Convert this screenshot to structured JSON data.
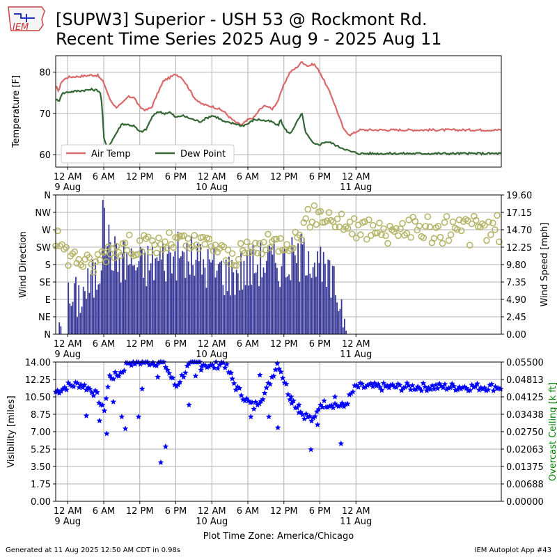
{
  "header": {
    "title_line1": "[SUPW3] Superior - USH 53 @ Rockmont Rd.",
    "title_line2": "Recent Time Series 2025 Aug 9 - 2025 Aug 11",
    "logo_text": "IEM"
  },
  "footer": {
    "generated": "Generated at 11 Aug 2025 12:50 AM CDT in 0.98s",
    "app": "IEM Autoplot App #43"
  },
  "x_axis": {
    "timezone_label": "Plot Time Zone: America/Chicago",
    "range_hours": [
      -2,
      72.2
    ],
    "ticks": [
      {
        "h": 0,
        "l1": "12 AM",
        "l2": "9 Aug"
      },
      {
        "h": 6,
        "l1": "6 AM",
        "l2": ""
      },
      {
        "h": 12,
        "l1": "12 PM",
        "l2": ""
      },
      {
        "h": 18,
        "l1": "6 PM",
        "l2": ""
      },
      {
        "h": 24,
        "l1": "12 AM",
        "l2": "10 Aug"
      },
      {
        "h": 30,
        "l1": "6 AM",
        "l2": ""
      },
      {
        "h": 36,
        "l1": "12 PM",
        "l2": ""
      },
      {
        "h": 42,
        "l1": "6 PM",
        "l2": ""
      },
      {
        "h": 48,
        "l1": "12 AM",
        "l2": "11 Aug"
      }
    ]
  },
  "colors": {
    "air_temp": "#d9686a",
    "dew_point": "#336633",
    "wind_speed": "#383898",
    "wind_dir": "#b5b56a",
    "visibility": "#0000ff",
    "ceiling_axis": "#008000",
    "grid": "#b0b0b0"
  },
  "chart_data": [
    {
      "type": "line",
      "ylabel": "Temperature [F]",
      "ylim": [
        57,
        84
      ],
      "yticks": [
        "60",
        "70",
        "80"
      ],
      "ytick_values": [
        60,
        70,
        80
      ],
      "grid": true,
      "legend_position": "lower-left",
      "series": [
        {
          "name": "Air Temp",
          "x_hours": [
            -2,
            -1.5,
            -1,
            0,
            2,
            4,
            5,
            6,
            7,
            8,
            9,
            10,
            11,
            12,
            13,
            14,
            15,
            16,
            17,
            18,
            19,
            20,
            21,
            22,
            23,
            24,
            25,
            26,
            27,
            28,
            29,
            30,
            31,
            32,
            33,
            34,
            35,
            36,
            37,
            38,
            39,
            40,
            41,
            42,
            43,
            44,
            45,
            46,
            47,
            48,
            48.5
          ],
          "values": [
            76.5,
            75.5,
            77.8,
            78.8,
            79.0,
            79.3,
            79.2,
            77.5,
            73.5,
            71.5,
            72.3,
            74.0,
            74.0,
            71.5,
            70.8,
            71.5,
            75.0,
            78.0,
            78.7,
            79.5,
            78.7,
            76.5,
            74.0,
            72.5,
            72.0,
            71.7,
            71.2,
            70.5,
            69.0,
            67.8,
            67.2,
            68.5,
            69.0,
            71.0,
            72.0,
            71.0,
            73.0,
            77.0,
            80.0,
            81.0,
            82.5,
            81.5,
            82.0,
            80.0,
            77.0,
            74.0,
            70.0,
            66.0,
            64.8,
            65.5,
            66.0
          ]
        },
        {
          "name": "Dew Point",
          "x_hours": [
            -2,
            -1.5,
            -1,
            0,
            2,
            4,
            5,
            5.5,
            5.8,
            6.0,
            6.5,
            7,
            8,
            9,
            10,
            11,
            12,
            13,
            14,
            15,
            16,
            17,
            18,
            19,
            20,
            21,
            22,
            23,
            24,
            25,
            26,
            27,
            28,
            29,
            30,
            31,
            32,
            33,
            34,
            35,
            35.5,
            36,
            37,
            38,
            39,
            39.5,
            40,
            41,
            42,
            43,
            44,
            45,
            46,
            47,
            48,
            48.5
          ],
          "values": [
            73.5,
            72.8,
            74.8,
            75.2,
            75.5,
            75.8,
            75.6,
            75.0,
            70.0,
            64.0,
            62.0,
            62.5,
            65.0,
            67.5,
            67.3,
            67.0,
            65.5,
            66.0,
            69.0,
            70.5,
            70.0,
            70.3,
            69.0,
            69.5,
            69.0,
            68.5,
            68.0,
            68.8,
            69.5,
            69.0,
            68.0,
            67.7,
            67.5,
            67.0,
            67.5,
            68.5,
            68.5,
            68.2,
            68.0,
            67.0,
            68.5,
            66.5,
            65.0,
            67.5,
            70.0,
            66.0,
            64.5,
            62.5,
            62.5,
            63.2,
            62.8,
            62.0,
            61.5,
            60.8,
            60.5,
            60.3
          ]
        }
      ]
    },
    {
      "type": "bar",
      "ylabel": "Wind Direction",
      "ylabel_right": "Wind Speed [mph]",
      "yticks_left": [
        "N",
        "NE",
        "E",
        "SE",
        "S",
        "SW",
        "W",
        "NW",
        "N"
      ],
      "yticks_right": [
        "0.00",
        "2.45",
        "4.90",
        "7.35",
        "9.80",
        "12.25",
        "14.70",
        "17.15",
        "19.60"
      ],
      "ylim_left": [
        0,
        360
      ],
      "ylim_right": [
        0,
        19.6
      ],
      "grid": true,
      "wind_speed_profile": {
        "x_hours": [
          -1.5,
          0,
          2,
          5,
          6,
          8,
          10,
          12,
          15,
          18,
          21,
          24,
          27,
          30,
          33,
          36,
          39,
          40,
          42,
          44,
          45,
          46.3
        ],
        "values": [
          3.5,
          4.5,
          5.5,
          8.5,
          14.5,
          10.5,
          10.5,
          9.5,
          10.5,
          11.0,
          10.5,
          9.5,
          8.5,
          9.5,
          10.5,
          10.0,
          11.0,
          12.0,
          9.0,
          7.0,
          5.5,
          2.5
        ]
      },
      "wind_direction_profile": {
        "x_hours": [
          -2,
          0,
          2,
          4,
          6,
          8,
          10,
          12,
          15,
          18,
          21,
          24,
          27,
          30,
          33,
          36,
          38,
          40,
          42,
          44,
          46,
          48
        ],
        "values_deg": [
          250,
          205,
          195,
          175,
          210,
          225,
          230,
          230,
          230,
          240,
          230,
          235,
          195,
          215,
          230,
          240,
          245,
          300,
          310,
          300,
          285,
          270
        ]
      },
      "wind_speed_max_bar": 18.9
    },
    {
      "type": "scatter",
      "ylabel": "Visibility [miles]",
      "ylabel_right": "Overcast Ceiling [k ft]",
      "yticks_left": [
        "0.00",
        "1.75",
        "3.50",
        "5.25",
        "7.00",
        "8.75",
        "10.50",
        "12.25",
        "14.00"
      ],
      "yticks_right": [
        "0.00000",
        "0.00688",
        "0.01375",
        "0.02063",
        "0.02750",
        "0.03438",
        "0.04125",
        "0.04813",
        "0.05500"
      ],
      "ylim_left": [
        0,
        14
      ],
      "ylim_right": [
        0,
        0.055
      ],
      "grid": true,
      "marker": "star",
      "visibility_profile": {
        "x_hours": [
          -2,
          0,
          2,
          4,
          5,
          6,
          7,
          8,
          9,
          10,
          12,
          14,
          16,
          18,
          20,
          22,
          24,
          26,
          28,
          30,
          31,
          33,
          35,
          37,
          39,
          40,
          41,
          42,
          44,
          46,
          48
        ],
        "values": [
          11.0,
          11.6,
          11.8,
          11.2,
          10.5,
          9.0,
          12.5,
          12.6,
          13.0,
          14.0,
          14.0,
          14.0,
          14.0,
          11.5,
          13.5,
          14.0,
          13.5,
          14.0,
          11.5,
          10.0,
          9.5,
          11.0,
          14.0,
          10.5,
          8.8,
          8.5,
          8.0,
          9.8,
          9.8,
          9.5,
          11.5
        ]
      },
      "visibility_outliers": [
        {
          "x": 3.1,
          "y": 8.6
        },
        {
          "x": 5.3,
          "y": 8.1
        },
        {
          "x": 6.5,
          "y": 6.8
        },
        {
          "x": 7.6,
          "y": 10.0
        },
        {
          "x": 9.0,
          "y": 8.5
        },
        {
          "x": 9.6,
          "y": 7.3
        },
        {
          "x": 11.8,
          "y": 8.5
        },
        {
          "x": 12.4,
          "y": 11.3
        },
        {
          "x": 15.0,
          "y": 12.5
        },
        {
          "x": 15.5,
          "y": 3.9
        },
        {
          "x": 16.3,
          "y": 5.5
        },
        {
          "x": 20.2,
          "y": 9.7
        },
        {
          "x": 21.3,
          "y": 12.6
        },
        {
          "x": 22.2,
          "y": 13.2
        },
        {
          "x": 27.2,
          "y": 12.9
        },
        {
          "x": 30.5,
          "y": 8.5
        },
        {
          "x": 32.0,
          "y": 12.7
        },
        {
          "x": 33.5,
          "y": 8.5
        },
        {
          "x": 35.0,
          "y": 7.4
        },
        {
          "x": 37.2,
          "y": 10.5
        },
        {
          "x": 38.5,
          "y": 9.7
        },
        {
          "x": 40.5,
          "y": 5.2
        },
        {
          "x": 41.6,
          "y": 7.7
        },
        {
          "x": 44.5,
          "y": 10.5
        },
        {
          "x": 45.5,
          "y": 5.8
        }
      ]
    }
  ]
}
